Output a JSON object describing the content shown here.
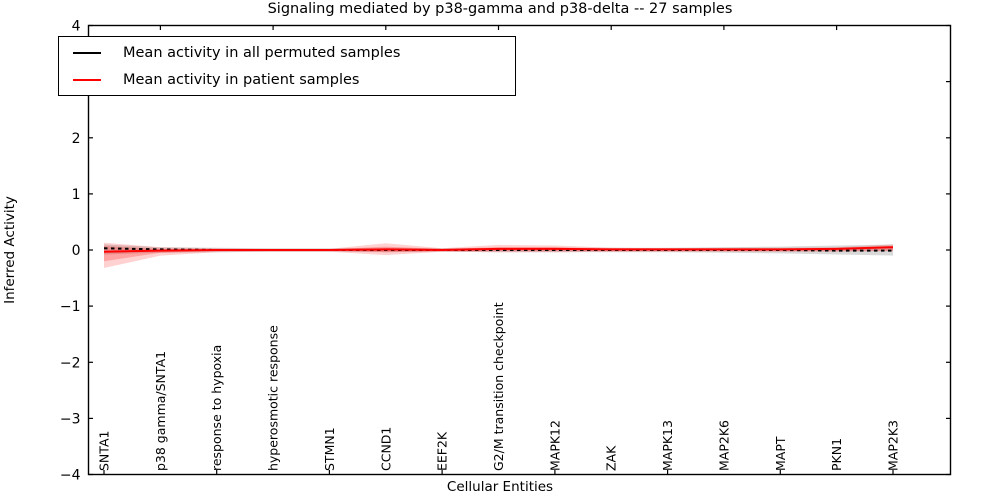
{
  "chart_data": {
    "type": "line",
    "title": "Signaling mediated by p38-gamma and p38-delta -- 27 samples",
    "xlabel": "Cellular Entities",
    "ylabel": "Inferred Activity",
    "ylim": [
      -4,
      4
    ],
    "yticks": [
      4,
      3,
      2,
      1,
      0,
      -1,
      -2,
      -3,
      -4
    ],
    "grid": false,
    "legend_position": "upper left",
    "categories": [
      "SNTA1",
      "p38 gamma/SNTA1",
      "response to hypoxia",
      "hyperosmotic response",
      "STMN1",
      "CCND1",
      "EEF2K",
      "G2/M transition checkpoint",
      "MAPK12",
      "ZAK",
      "MAPK13",
      "MAP2K6",
      "MAPT",
      "PKN1",
      "MAP2K3"
    ],
    "series": [
      {
        "name": "Mean activity in all permuted samples",
        "color": "#000000",
        "style": "dashed",
        "values": [
          0.03,
          0.01,
          0.0,
          0.0,
          0.0,
          0.0,
          0.0,
          0.0,
          0.0,
          0.0,
          0.0,
          0.0,
          0.0,
          -0.01,
          -0.01
        ]
      },
      {
        "name": "Mean activity in patient samples",
        "color": "#ff0000",
        "style": "solid",
        "values": [
          -0.03,
          -0.01,
          0.0,
          0.0,
          0.0,
          0.01,
          0.0,
          0.02,
          0.02,
          0.01,
          0.01,
          0.01,
          0.01,
          0.02,
          0.05
        ]
      }
    ],
    "bands": [
      {
        "name": "permuted-samples-spread",
        "color": "rgba(0,0,0,0.15)",
        "upper": [
          0.1,
          0.05,
          0.04,
          0.03,
          0.03,
          0.04,
          0.03,
          0.04,
          0.04,
          0.04,
          0.04,
          0.05,
          0.06,
          0.08,
          0.1
        ],
        "lower": [
          -0.08,
          -0.05,
          -0.04,
          -0.03,
          -0.03,
          -0.04,
          -0.03,
          -0.04,
          -0.04,
          -0.04,
          -0.04,
          -0.05,
          -0.06,
          -0.08,
          -0.1
        ]
      },
      {
        "name": "patient-samples-spread-outer",
        "color": "rgba(255,0,0,0.18)",
        "upper": [
          0.13,
          0.05,
          0.03,
          0.02,
          0.02,
          0.12,
          0.03,
          0.09,
          0.08,
          0.04,
          0.03,
          0.04,
          0.04,
          0.05,
          0.1
        ],
        "lower": [
          -0.32,
          -0.1,
          -0.04,
          -0.03,
          -0.03,
          -0.09,
          -0.03,
          -0.04,
          -0.04,
          -0.03,
          -0.03,
          -0.03,
          -0.03,
          -0.03,
          -0.02
        ]
      },
      {
        "name": "patient-samples-spread-inner",
        "color": "rgba(255,0,0,0.22)",
        "upper": [
          0.07,
          0.02,
          0.01,
          0.01,
          0.01,
          0.06,
          0.02,
          0.05,
          0.05,
          0.02,
          0.02,
          0.02,
          0.02,
          0.03,
          0.07
        ],
        "lower": [
          -0.2,
          -0.05,
          -0.02,
          -0.01,
          -0.01,
          -0.04,
          -0.02,
          -0.02,
          -0.02,
          -0.02,
          -0.02,
          -0.02,
          -0.02,
          -0.02,
          -0.01
        ]
      }
    ]
  }
}
